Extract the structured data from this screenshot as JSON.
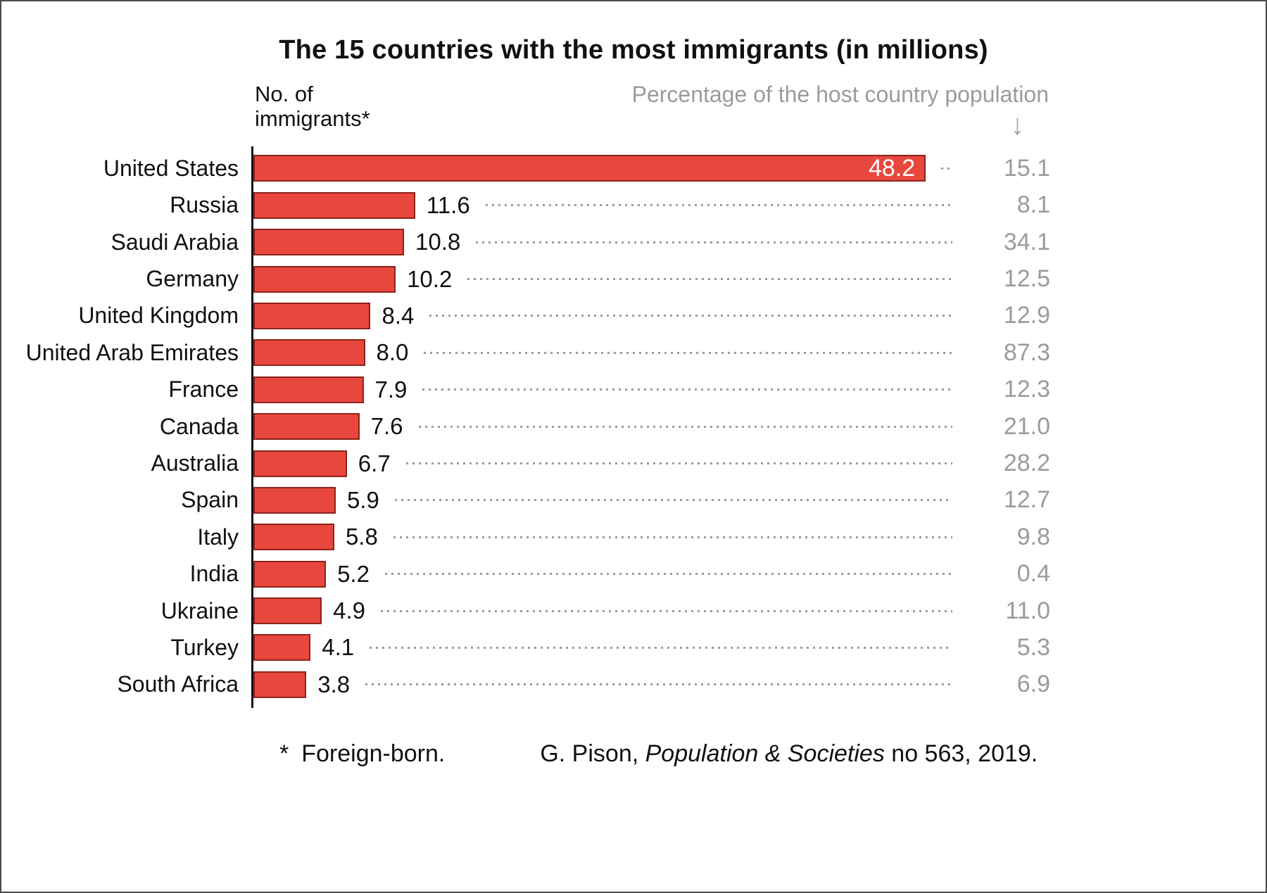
{
  "chart_data": {
    "type": "bar",
    "title": "The 15 countries with the most immigrants (in millions)",
    "left_axis_label": "No. of immigrants*",
    "right_axis_label": "Percentage of the host country population",
    "categories": [
      "United States",
      "Russia",
      "Saudi Arabia",
      "Germany",
      "United Kingdom",
      "United Arab Emirates",
      "France",
      "Canada",
      "Australia",
      "Spain",
      "Italy",
      "India",
      "Ukraine",
      "Turkey",
      "South Africa"
    ],
    "series": [
      {
        "name": "No. of immigrants (millions)",
        "values": [
          48.2,
          11.6,
          10.8,
          10.2,
          8.4,
          8.0,
          7.9,
          7.6,
          6.7,
          5.9,
          5.8,
          5.2,
          4.9,
          4.1,
          3.8
        ]
      },
      {
        "name": "Percentage of the host country population",
        "values": [
          15.1,
          8.1,
          34.1,
          12.5,
          12.9,
          87.3,
          12.3,
          21.0,
          28.2,
          12.7,
          9.8,
          0.4,
          11.0,
          5.3,
          6.9
        ]
      }
    ],
    "xlim": [
      0,
      48.2
    ],
    "grid": "off",
    "legend_position": "none",
    "bar_orientation": "horizontal",
    "bar_color": "#e8473d",
    "bar_border_color": "#8d231b",
    "percent_color": "#9b9b9b"
  },
  "icons": {
    "down_arrow": "↓"
  },
  "footer": {
    "footnote_star": "*",
    "footnote_text": "Foreign-born.",
    "citation_prefix": "G. Pison, ",
    "citation_italic": "Population & Societies",
    "citation_suffix": " no 563, 2019."
  }
}
